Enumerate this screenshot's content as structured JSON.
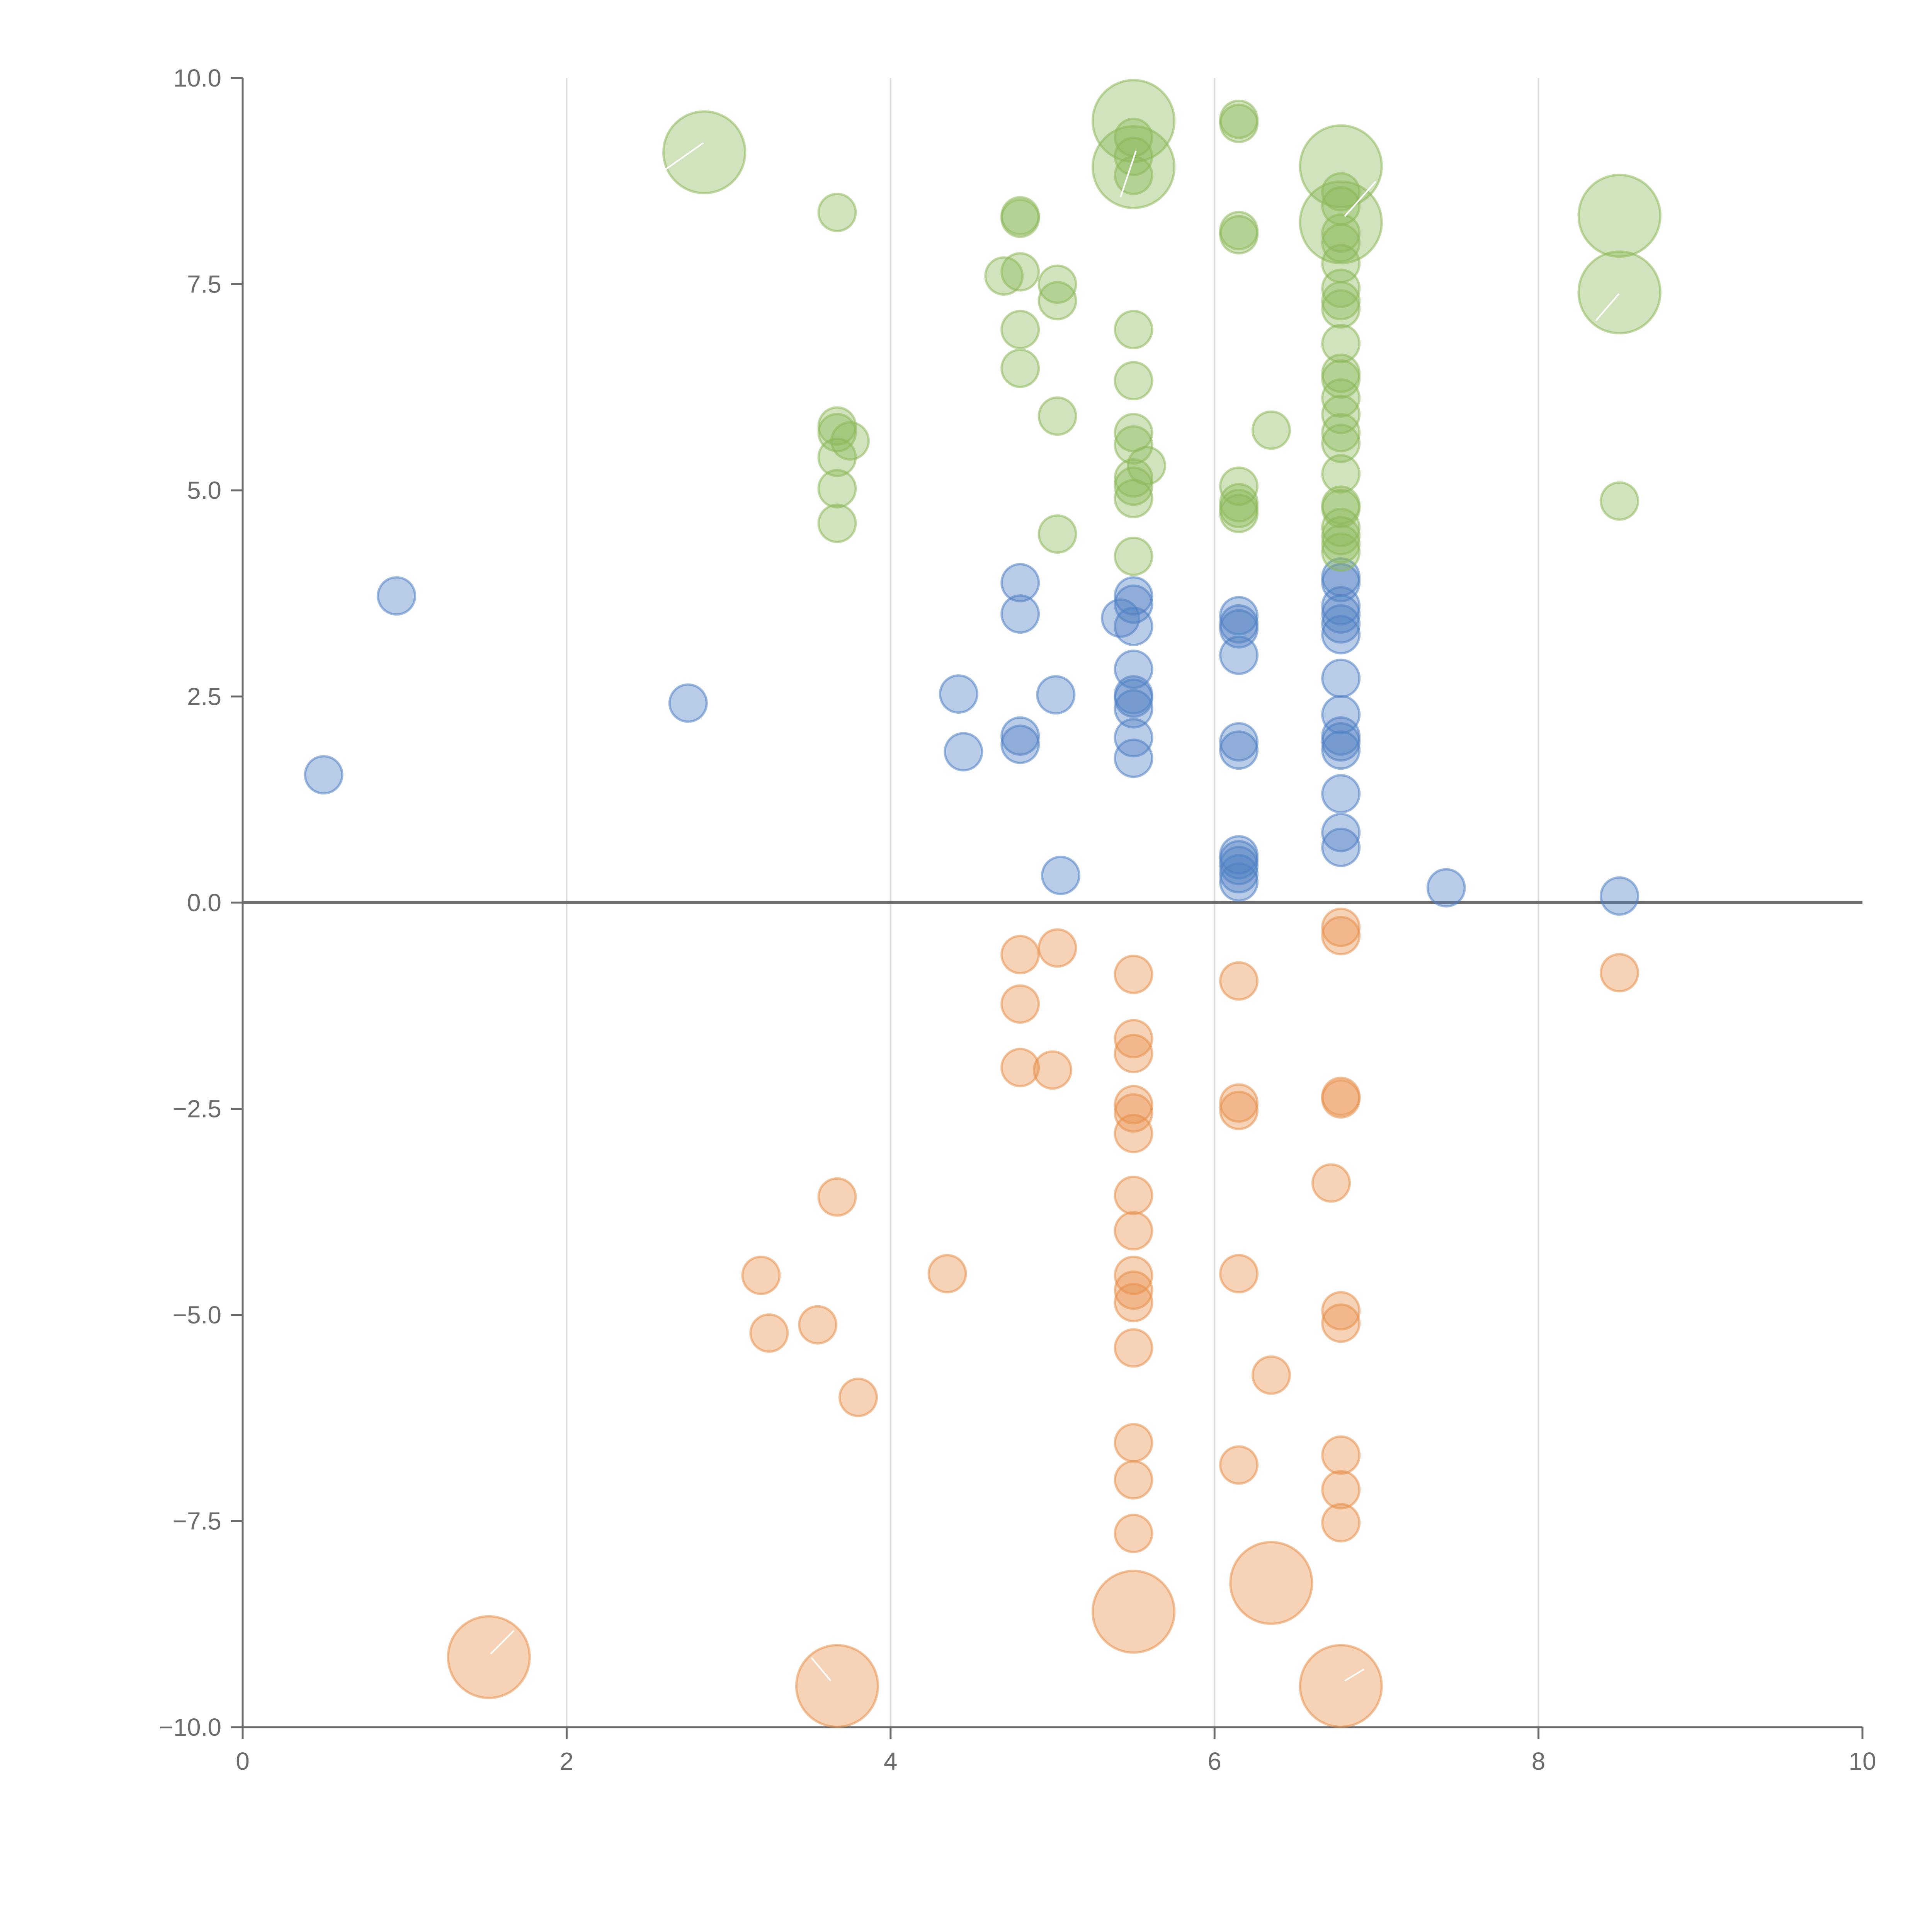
{
  "chart_data": {
    "type": "scatter",
    "title": "",
    "xlabel": "",
    "ylabel": "",
    "xlim": [
      0,
      10
    ],
    "ylim": [
      -10,
      10
    ],
    "x_ticks": [
      0,
      2,
      4,
      6,
      8,
      10
    ],
    "x_tick_labels": [
      "0",
      "2",
      "4",
      "6",
      "8",
      "10"
    ],
    "y_ticks": [
      10,
      7.5,
      5,
      2.5,
      0,
      -2.5,
      -5,
      -7.5,
      -10
    ],
    "y_tick_labels": [
      "10.0",
      "7.5",
      "5.0",
      "2.5",
      "0.0",
      "−2.5",
      "−5.0",
      "−7.5",
      "−10.0"
    ],
    "vertical_grid": true,
    "zero_line": true,
    "colors": {
      "blue": "#4f7fc4",
      "orange": "#e8904a",
      "green": "#8db85a"
    },
    "series": [
      {
        "name": "blue",
        "color": "#4f7fc4",
        "points": [
          [
            0.5,
            1.55,
            1
          ],
          [
            0.95,
            3.72,
            1
          ],
          [
            2.75,
            2.42,
            1
          ],
          [
            4.42,
            2.53,
            1
          ],
          [
            4.45,
            1.83,
            1
          ],
          [
            4.8,
            3.88,
            1
          ],
          [
            4.8,
            3.5,
            1
          ],
          [
            4.8,
            2.02,
            1
          ],
          [
            4.8,
            1.92,
            1
          ],
          [
            5.02,
            2.52,
            1
          ],
          [
            5.05,
            0.33,
            1
          ],
          [
            5.42,
            3.45,
            1
          ],
          [
            5.5,
            3.72,
            1
          ],
          [
            5.5,
            3.62,
            1
          ],
          [
            5.5,
            3.35,
            1
          ],
          [
            5.5,
            2.83,
            1
          ],
          [
            5.5,
            2.52,
            1
          ],
          [
            5.5,
            2.48,
            1
          ],
          [
            5.5,
            2.35,
            1
          ],
          [
            5.5,
            2.0,
            1
          ],
          [
            5.5,
            1.75,
            1
          ],
          [
            6.15,
            3.48,
            1
          ],
          [
            6.15,
            3.38,
            1
          ],
          [
            6.15,
            3.32,
            1
          ],
          [
            6.15,
            3.0,
            1
          ],
          [
            6.15,
            1.95,
            1
          ],
          [
            6.15,
            1.85,
            1
          ],
          [
            6.15,
            0.58,
            1
          ],
          [
            6.15,
            0.52,
            1
          ],
          [
            6.15,
            0.45,
            1
          ],
          [
            6.15,
            0.35,
            1
          ],
          [
            6.15,
            0.25,
            1
          ],
          [
            6.78,
            3.95,
            1
          ],
          [
            6.78,
            3.88,
            1
          ],
          [
            6.78,
            3.6,
            1
          ],
          [
            6.78,
            3.5,
            1
          ],
          [
            6.78,
            3.38,
            1
          ],
          [
            6.78,
            3.25,
            1
          ],
          [
            6.78,
            2.72,
            1
          ],
          [
            6.78,
            2.28,
            1
          ],
          [
            6.78,
            2.02,
            1
          ],
          [
            6.78,
            1.95,
            1
          ],
          [
            6.78,
            1.85,
            1
          ],
          [
            6.78,
            1.32,
            1
          ],
          [
            6.78,
            0.85,
            1
          ],
          [
            6.78,
            0.67,
            1
          ],
          [
            7.43,
            0.18,
            1
          ],
          [
            8.5,
            0.08,
            1
          ]
        ]
      },
      {
        "name": "orange",
        "color": "#e8904a",
        "points": [
          [
            1.52,
            -9.15,
            2.2
          ],
          [
            3.2,
            -4.52,
            1
          ],
          [
            3.25,
            -5.22,
            1
          ],
          [
            3.55,
            -5.12,
            1
          ],
          [
            3.67,
            -3.57,
            1
          ],
          [
            3.67,
            -9.5,
            2.2
          ],
          [
            3.8,
            -6.0,
            1
          ],
          [
            4.35,
            -4.5,
            1
          ],
          [
            4.8,
            -0.63,
            1
          ],
          [
            4.8,
            -1.23,
            1
          ],
          [
            4.8,
            -2.0,
            1
          ],
          [
            5.0,
            -2.03,
            1
          ],
          [
            5.03,
            -0.55,
            1
          ],
          [
            5.5,
            -0.87,
            1
          ],
          [
            5.5,
            -1.65,
            1
          ],
          [
            5.5,
            -1.83,
            1
          ],
          [
            5.5,
            -2.45,
            1
          ],
          [
            5.5,
            -2.55,
            1
          ],
          [
            5.5,
            -2.8,
            1
          ],
          [
            5.5,
            -3.55,
            1
          ],
          [
            5.5,
            -3.98,
            1
          ],
          [
            5.5,
            -4.52,
            1
          ],
          [
            5.5,
            -4.7,
            1
          ],
          [
            5.5,
            -4.85,
            1
          ],
          [
            5.5,
            -5.4,
            1
          ],
          [
            5.5,
            -6.55,
            1
          ],
          [
            5.5,
            -7.0,
            1
          ],
          [
            5.5,
            -7.65,
            1
          ],
          [
            5.5,
            -8.6,
            2.2
          ],
          [
            6.15,
            -0.95,
            1
          ],
          [
            6.15,
            -2.43,
            1
          ],
          [
            6.15,
            -2.52,
            1
          ],
          [
            6.15,
            -4.5,
            1
          ],
          [
            6.15,
            -6.82,
            1
          ],
          [
            6.35,
            -5.73,
            1
          ],
          [
            6.35,
            -8.25,
            2.2
          ],
          [
            6.72,
            -3.4,
            1
          ],
          [
            6.78,
            -0.3,
            1
          ],
          [
            6.78,
            -0.4,
            1
          ],
          [
            6.78,
            -2.35,
            1
          ],
          [
            6.78,
            -2.38,
            1
          ],
          [
            6.78,
            -4.95,
            1
          ],
          [
            6.78,
            -5.1,
            1
          ],
          [
            6.78,
            -6.7,
            1
          ],
          [
            6.78,
            -7.12,
            1
          ],
          [
            6.78,
            -7.52,
            1
          ],
          [
            6.78,
            -9.5,
            2.2
          ],
          [
            8.5,
            -0.85,
            1
          ]
        ]
      },
      {
        "name": "green",
        "color": "#8db85a",
        "points": [
          [
            2.85,
            9.1,
            2.2
          ],
          [
            3.67,
            8.37,
            1
          ],
          [
            3.67,
            5.78,
            1
          ],
          [
            3.67,
            5.7,
            1
          ],
          [
            3.67,
            5.4,
            1
          ],
          [
            3.75,
            5.6,
            1
          ],
          [
            3.67,
            5.02,
            1
          ],
          [
            3.67,
            4.6,
            1
          ],
          [
            4.7,
            7.6,
            1
          ],
          [
            4.8,
            8.33,
            1
          ],
          [
            4.8,
            8.3,
            1
          ],
          [
            4.8,
            7.65,
            1
          ],
          [
            4.8,
            6.95,
            1
          ],
          [
            4.8,
            6.48,
            1
          ],
          [
            5.03,
            7.5,
            1
          ],
          [
            5.03,
            7.3,
            1
          ],
          [
            5.03,
            5.9,
            1
          ],
          [
            5.03,
            4.47,
            1
          ],
          [
            5.5,
            9.48,
            2.2
          ],
          [
            5.5,
            8.92,
            2.2
          ],
          [
            5.5,
            9.28,
            1
          ],
          [
            5.5,
            9.05,
            1
          ],
          [
            5.5,
            8.82,
            1
          ],
          [
            5.5,
            6.95,
            1
          ],
          [
            5.5,
            6.33,
            1
          ],
          [
            5.5,
            5.7,
            1
          ],
          [
            5.5,
            5.55,
            1
          ],
          [
            5.58,
            5.3,
            1
          ],
          [
            5.5,
            5.15,
            1
          ],
          [
            5.5,
            5.05,
            1
          ],
          [
            5.5,
            4.9,
            1
          ],
          [
            5.5,
            4.2,
            1
          ],
          [
            6.15,
            9.5,
            1
          ],
          [
            6.15,
            9.45,
            1
          ],
          [
            6.15,
            8.15,
            1
          ],
          [
            6.15,
            8.1,
            1
          ],
          [
            6.15,
            5.05,
            1
          ],
          [
            6.15,
            4.85,
            1
          ],
          [
            6.15,
            4.78,
            1
          ],
          [
            6.15,
            4.72,
            1
          ],
          [
            6.35,
            5.73,
            1
          ],
          [
            6.78,
            8.93,
            2.2
          ],
          [
            6.78,
            8.25,
            2.2
          ],
          [
            6.78,
            8.62,
            1
          ],
          [
            6.78,
            8.45,
            1
          ],
          [
            6.78,
            8.12,
            1
          ],
          [
            6.78,
            8.0,
            1
          ],
          [
            6.78,
            7.75,
            1
          ],
          [
            6.78,
            7.45,
            1
          ],
          [
            6.78,
            7.3,
            1
          ],
          [
            6.78,
            7.2,
            1
          ],
          [
            6.78,
            6.78,
            1
          ],
          [
            6.78,
            6.42,
            1
          ],
          [
            6.78,
            6.35,
            1
          ],
          [
            6.78,
            6.12,
            1
          ],
          [
            6.78,
            5.92,
            1
          ],
          [
            6.78,
            5.7,
            1
          ],
          [
            6.78,
            5.57,
            1
          ],
          [
            6.78,
            5.2,
            1
          ],
          [
            6.78,
            4.82,
            1
          ],
          [
            6.78,
            4.78,
            1
          ],
          [
            6.78,
            4.55,
            1
          ],
          [
            6.78,
            4.45,
            1
          ],
          [
            6.78,
            4.35,
            1
          ],
          [
            6.78,
            4.25,
            1
          ],
          [
            8.5,
            8.33,
            2.2
          ],
          [
            8.5,
            7.4,
            2.2
          ],
          [
            8.5,
            4.87,
            1
          ]
        ]
      }
    ]
  }
}
